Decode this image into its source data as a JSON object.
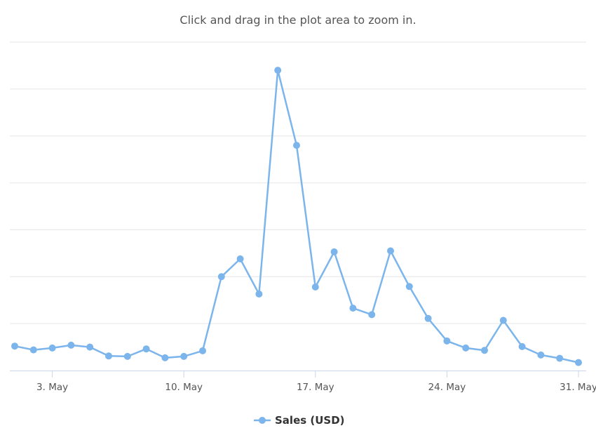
{
  "chart_data": {
    "type": "line",
    "subtitle": "Click and drag in the plot area to zoom in.",
    "x": [
      "2024-05-01",
      "2024-05-02",
      "2024-05-03",
      "2024-05-04",
      "2024-05-05",
      "2024-05-06",
      "2024-05-07",
      "2024-05-08",
      "2024-05-09",
      "2024-05-10",
      "2024-05-11",
      "2024-05-12",
      "2024-05-13",
      "2024-05-14",
      "2024-05-15",
      "2024-05-16",
      "2024-05-17",
      "2024-05-18",
      "2024-05-19",
      "2024-05-20",
      "2024-05-21",
      "2024-05-22",
      "2024-05-23",
      "2024-05-24",
      "2024-05-25",
      "2024-05-26",
      "2024-05-27",
      "2024-05-28",
      "2024-05-29",
      "2024-05-30",
      "2024-05-31"
    ],
    "series": [
      {
        "name": "Sales (USD)",
        "color": "#7cb5ec",
        "values": [
          52,
          44,
          48,
          54,
          50,
          31,
          30,
          46,
          27,
          30,
          42,
          200,
          238,
          163,
          640,
          480,
          178,
          253,
          133,
          119,
          255,
          179,
          111,
          63,
          48,
          43,
          107,
          51,
          33,
          26,
          17
        ]
      }
    ],
    "x_tick_labels": [
      {
        "x": "2024-05-03",
        "label": "3. May"
      },
      {
        "x": "2024-05-10",
        "label": "10. May"
      },
      {
        "x": "2024-05-17",
        "label": "17. May"
      },
      {
        "x": "2024-05-24",
        "label": "24. May"
      },
      {
        "x": "2024-05-31",
        "label": "31. May"
      }
    ],
    "ylim": [
      0,
      700
    ],
    "y_gridlines": [
      0,
      100,
      200,
      300,
      400,
      500,
      600,
      700
    ],
    "grid": true,
    "legend_position": "bottom-center"
  }
}
